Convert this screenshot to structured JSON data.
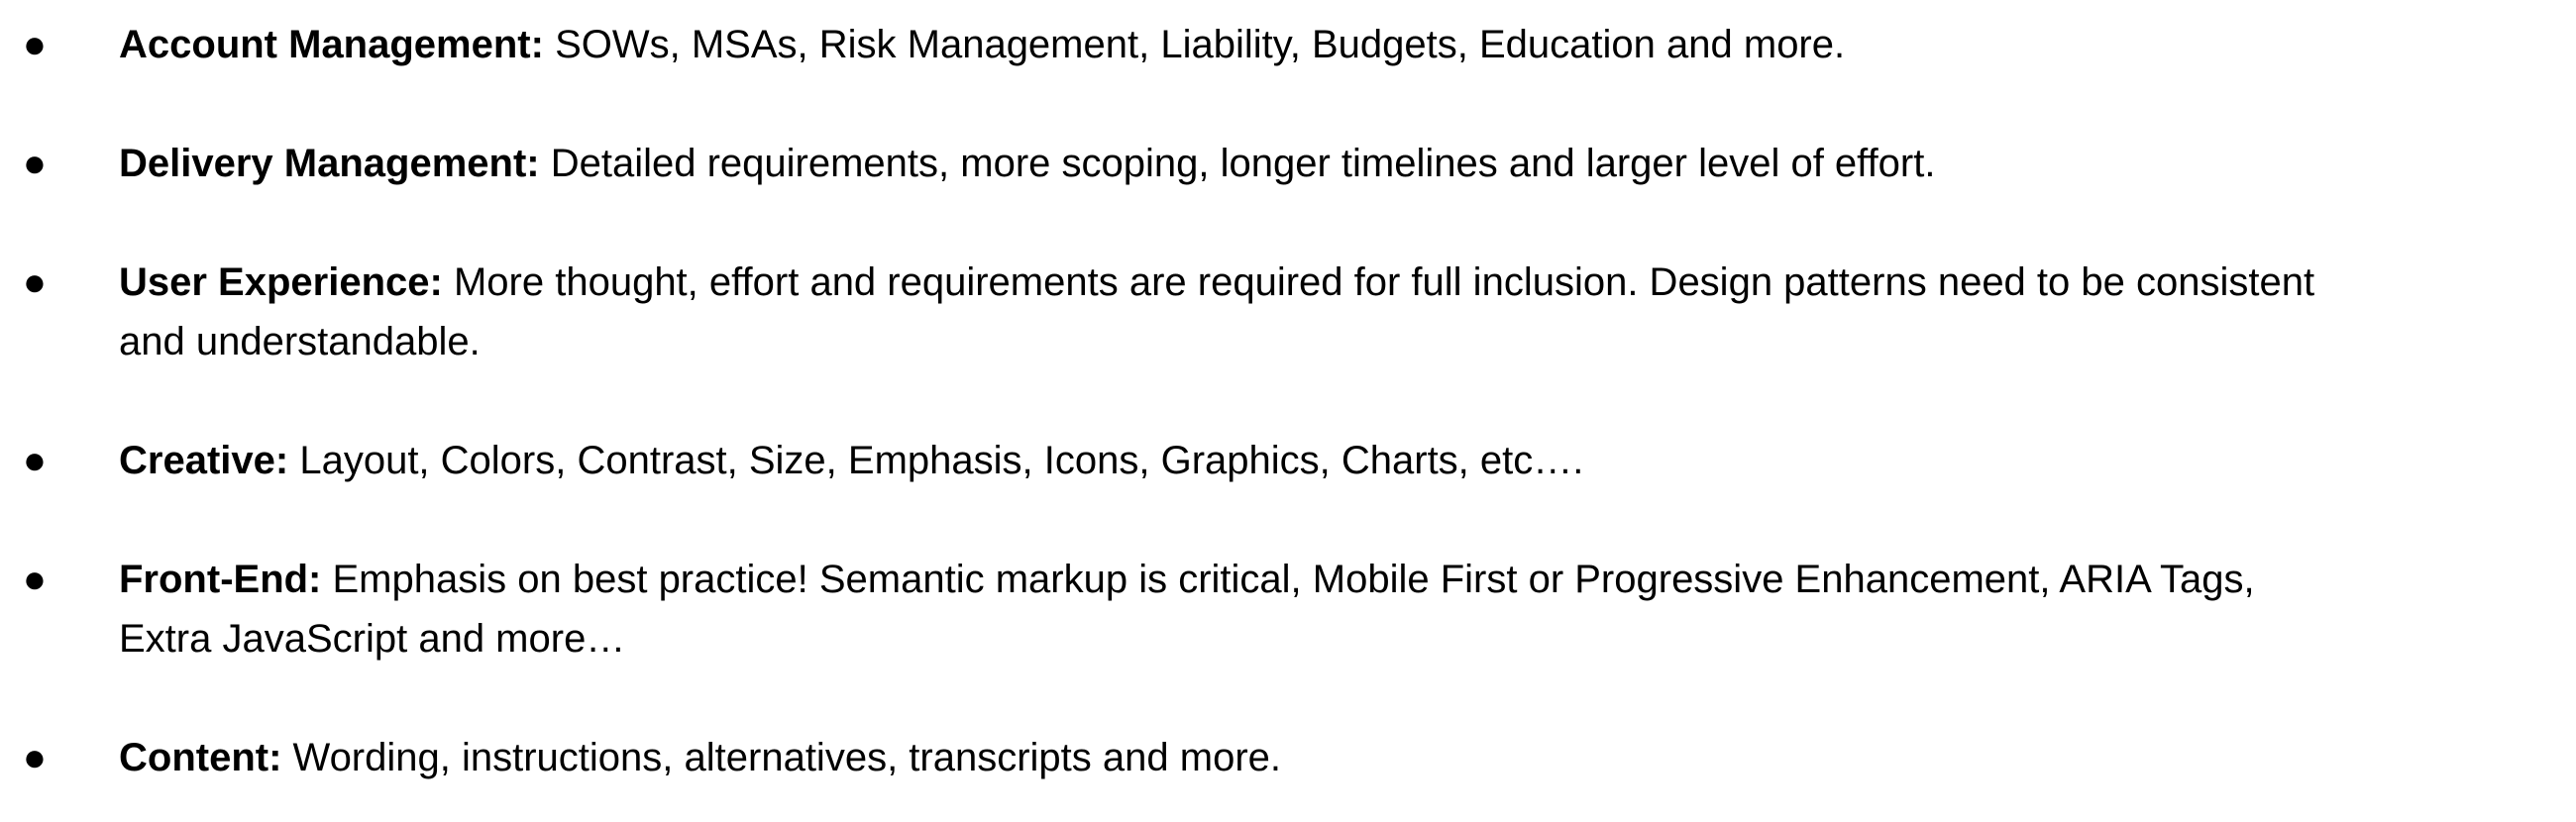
{
  "items": [
    {
      "label": "Account Management:",
      "lines": [
        "SOWs, MSAs, Risk Management, Liability, Budgets, Education and more."
      ]
    },
    {
      "label": "Delivery Management:",
      "lines": [
        "Detailed requirements, more scoping, longer timelines and larger level of effort."
      ]
    },
    {
      "label": "User Experience:",
      "lines": [
        "More thought, effort and requirements are required for full inclusion.  Design patterns need to be consistent",
        "and understandable."
      ]
    },
    {
      "label": "Creative:",
      "lines": [
        "Layout, Colors, Contrast, Size, Emphasis, Icons, Graphics, Charts, etc…."
      ]
    },
    {
      "label": "Front-End:",
      "lines": [
        "Emphasis on best practice!  Semantic markup is critical, Mobile First or Progressive Enhancement, ARIA Tags,",
        "Extra JavaScript and more…"
      ]
    },
    {
      "label": "Content:",
      "lines": [
        "Wording, instructions, alternatives, transcripts and more."
      ]
    }
  ]
}
